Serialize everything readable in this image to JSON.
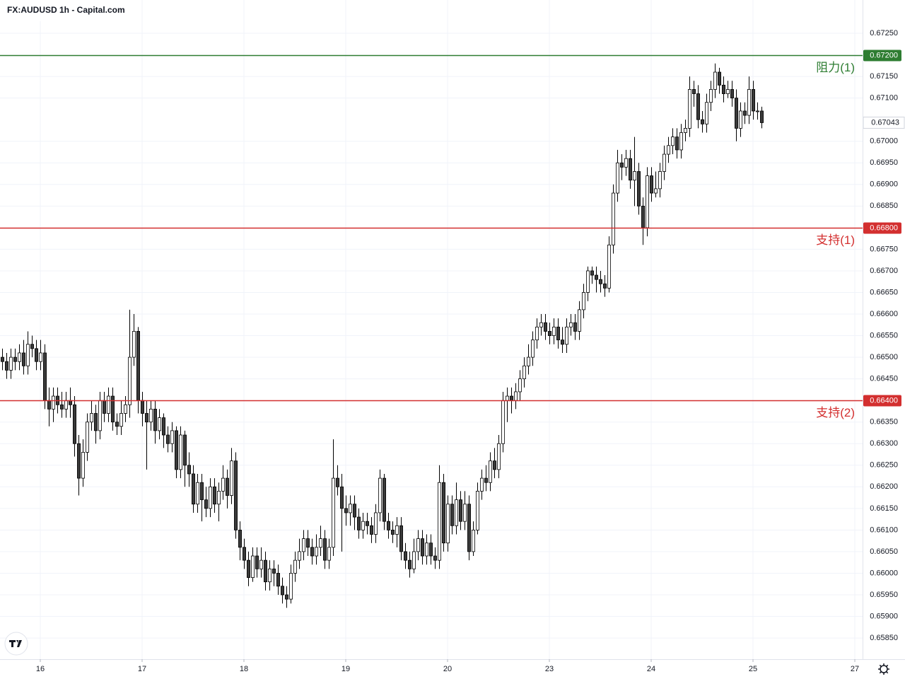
{
  "chart_data": {
    "type": "candlestick",
    "title": "FX:AUDUSD 1h - Capital.com",
    "up_color": "#ffffff",
    "down_color": "#3a3a3a",
    "wick_color": "#000000",
    "grid": true,
    "ylim": [
      0.65801,
      0.67327
    ],
    "xlim": [
      -0.5,
      202.83
    ],
    "yticks": [
      {
        "value": 0.6725,
        "label": "0.67250"
      },
      {
        "value": 0.6715,
        "label": "0.67150"
      },
      {
        "value": 0.671,
        "label": "0.67100"
      },
      {
        "value": 0.67,
        "label": "0.67000"
      },
      {
        "value": 0.6695,
        "label": "0.66950"
      },
      {
        "value": 0.669,
        "label": "0.66900"
      },
      {
        "value": 0.6685,
        "label": "0.66850"
      },
      {
        "value": 0.6675,
        "label": "0.66750"
      },
      {
        "value": 0.667,
        "label": "0.66700"
      },
      {
        "value": 0.6665,
        "label": "0.66650"
      },
      {
        "value": 0.666,
        "label": "0.66600"
      },
      {
        "value": 0.6655,
        "label": "0.66550"
      },
      {
        "value": 0.665,
        "label": "0.66500"
      },
      {
        "value": 0.6645,
        "label": "0.66450"
      },
      {
        "value": 0.6635,
        "label": "0.66350"
      },
      {
        "value": 0.663,
        "label": "0.66300"
      },
      {
        "value": 0.6625,
        "label": "0.66250"
      },
      {
        "value": 0.662,
        "label": "0.66200"
      },
      {
        "value": 0.6615,
        "label": "0.66150"
      },
      {
        "value": 0.661,
        "label": "0.66100"
      },
      {
        "value": 0.6605,
        "label": "0.66050"
      },
      {
        "value": 0.66,
        "label": "0.66000"
      },
      {
        "value": 0.6595,
        "label": "0.65950"
      },
      {
        "value": 0.659,
        "label": "0.65900"
      },
      {
        "value": 0.6585,
        "label": "0.65850"
      }
    ],
    "xticks": [
      {
        "value": 9,
        "label": "16"
      },
      {
        "value": 33,
        "label": "17"
      },
      {
        "value": 57,
        "label": "18"
      },
      {
        "value": 81,
        "label": "19"
      },
      {
        "value": 105,
        "label": "20"
      },
      {
        "value": 129,
        "label": "23"
      },
      {
        "value": 153,
        "label": "24"
      },
      {
        "value": 177,
        "label": "25"
      },
      {
        "value": 201,
        "label": "27"
      }
    ],
    "levels": [
      {
        "value": 0.672,
        "label": "0.67200",
        "name": "阻力(1)",
        "color": "#2e7d32"
      },
      {
        "value": 0.668,
        "label": "0.66800",
        "name": "支持(1)",
        "color": "#d32f2f"
      },
      {
        "value": 0.664,
        "label": "0.66400",
        "name": "支持(2)",
        "color": "#d32f2f"
      }
    ],
    "open": [
      0.665,
      0.6649,
      0.6647,
      0.665,
      0.6649,
      0.6651,
      0.6648,
      0.6653,
      0.6652,
      0.6649,
      0.6651,
      0.664,
      0.6638,
      0.6641,
      0.6639,
      0.6638,
      0.664,
      0.6639,
      0.663,
      0.6622,
      0.6628,
      0.6635,
      0.6637,
      0.6633,
      0.664,
      0.6637,
      0.6641,
      0.6635,
      0.6634,
      0.6637,
      0.6639,
      0.665,
      0.6656,
      0.664,
      0.6637,
      0.6635,
      0.6638,
      0.6633,
      0.6636,
      0.6632,
      0.663,
      0.6633,
      0.6624,
      0.6632,
      0.6625,
      0.6623,
      0.6616,
      0.6621,
      0.6617,
      0.6615,
      0.662,
      0.6616,
      0.6619,
      0.6622,
      0.6618,
      0.6626,
      0.661,
      0.6606,
      0.6603,
      0.6599,
      0.6604,
      0.6601,
      0.6603,
      0.6598,
      0.6601,
      0.66,
      0.6597,
      0.6595,
      0.6594,
      0.66,
      0.6603,
      0.6605,
      0.6608,
      0.6606,
      0.6604,
      0.6606,
      0.6608,
      0.6603,
      0.6606,
      0.6622,
      0.662,
      0.6615,
      0.6614,
      0.6616,
      0.6613,
      0.661,
      0.6612,
      0.6611,
      0.6609,
      0.6614,
      0.6622,
      0.6612,
      0.661,
      0.6609,
      0.6611,
      0.6605,
      0.6603,
      0.6601,
      0.6605,
      0.6608,
      0.6604,
      0.6607,
      0.6604,
      0.6603,
      0.6621,
      0.6607,
      0.6616,
      0.6611,
      0.6617,
      0.6612,
      0.6616,
      0.6605,
      0.661,
      0.6619,
      0.6622,
      0.6621,
      0.6626,
      0.6624,
      0.663,
      0.664,
      0.6641,
      0.664,
      0.6642,
      0.6645,
      0.6648,
      0.665,
      0.6654,
      0.6657,
      0.6658,
      0.6656,
      0.6655,
      0.6657,
      0.6654,
      0.6653,
      0.6657,
      0.6658,
      0.6656,
      0.6661,
      0.6665,
      0.667,
      0.6669,
      0.6668,
      0.6667,
      0.6666,
      0.6676,
      0.6688,
      0.6695,
      0.6694,
      0.6696,
      0.6691,
      0.6693,
      0.6685,
      0.668,
      0.6692,
      0.6688,
      0.6689,
      0.6693,
      0.6697,
      0.6699,
      0.6701,
      0.6698,
      0.6702,
      0.6703,
      0.6712,
      0.6711,
      0.6705,
      0.6704,
      0.6709,
      0.6712,
      0.6716,
      0.6713,
      0.6711,
      0.6712,
      0.671,
      0.6703,
      0.6707,
      0.6706,
      0.6712,
      0.6707,
      0.6707
    ],
    "high": [
      0.6652,
      0.6651,
      0.6652,
      0.6652,
      0.6653,
      0.6654,
      0.6656,
      0.6655,
      0.6654,
      0.6654,
      0.6653,
      0.6643,
      0.6643,
      0.6643,
      0.6642,
      0.6642,
      0.6643,
      0.6641,
      0.6632,
      0.6631,
      0.6637,
      0.664,
      0.6639,
      0.6642,
      0.6642,
      0.6643,
      0.6643,
      0.6637,
      0.664,
      0.6641,
      0.6661,
      0.666,
      0.6657,
      0.6642,
      0.664,
      0.664,
      0.664,
      0.6638,
      0.6637,
      0.6634,
      0.6635,
      0.6634,
      0.6634,
      0.6633,
      0.6628,
      0.6625,
      0.6623,
      0.6623,
      0.662,
      0.6622,
      0.6622,
      0.6621,
      0.6625,
      0.6624,
      0.6629,
      0.6628,
      0.6612,
      0.6608,
      0.6605,
      0.6606,
      0.6606,
      0.6606,
      0.6605,
      0.6603,
      0.6603,
      0.6602,
      0.6599,
      0.6597,
      0.6602,
      0.6605,
      0.6608,
      0.661,
      0.661,
      0.6608,
      0.6609,
      0.6611,
      0.661,
      0.6608,
      0.6631,
      0.6625,
      0.6623,
      0.6618,
      0.6618,
      0.6618,
      0.6615,
      0.6614,
      0.6614,
      0.6613,
      0.6616,
      0.6624,
      0.6623,
      0.6614,
      0.6612,
      0.6613,
      0.6613,
      0.6607,
      0.6605,
      0.6608,
      0.661,
      0.661,
      0.6609,
      0.6609,
      0.6606,
      0.6625,
      0.6623,
      0.6618,
      0.6618,
      0.6621,
      0.6619,
      0.6619,
      0.6618,
      0.6612,
      0.6621,
      0.6624,
      0.6625,
      0.6628,
      0.6629,
      0.6632,
      0.6642,
      0.6643,
      0.6643,
      0.6644,
      0.6647,
      0.665,
      0.6653,
      0.6656,
      0.6659,
      0.666,
      0.666,
      0.6658,
      0.6659,
      0.6659,
      0.6657,
      0.6659,
      0.666,
      0.666,
      0.6663,
      0.6667,
      0.6671,
      0.6671,
      0.6671,
      0.667,
      0.6669,
      0.6678,
      0.669,
      0.6698,
      0.6697,
      0.6698,
      0.6698,
      0.6701,
      0.6695,
      0.6687,
      0.6694,
      0.6694,
      0.6693,
      0.6695,
      0.6699,
      0.6701,
      0.6703,
      0.6703,
      0.6704,
      0.6705,
      0.6715,
      0.6714,
      0.6713,
      0.6707,
      0.6711,
      0.6714,
      0.6718,
      0.6717,
      0.6715,
      0.6714,
      0.6714,
      0.6712,
      0.6709,
      0.6709,
      0.6715,
      0.6714,
      0.6709,
      0.6708
    ],
    "low": [
      0.6647,
      0.6645,
      0.6645,
      0.6647,
      0.6647,
      0.6646,
      0.6646,
      0.665,
      0.6647,
      0.6647,
      0.6638,
      0.6634,
      0.6635,
      0.6637,
      0.6636,
      0.6636,
      0.6636,
      0.6627,
      0.6618,
      0.662,
      0.6626,
      0.6633,
      0.663,
      0.6631,
      0.6635,
      0.6635,
      0.6633,
      0.6632,
      0.6632,
      0.6635,
      0.6636,
      0.6648,
      0.6637,
      0.6634,
      0.6624,
      0.6633,
      0.663,
      0.6631,
      0.6629,
      0.6628,
      0.6628,
      0.6622,
      0.6622,
      0.662,
      0.662,
      0.6614,
      0.6614,
      0.6612,
      0.6613,
      0.6613,
      0.6614,
      0.6612,
      0.6617,
      0.6615,
      0.6616,
      0.6608,
      0.6603,
      0.6601,
      0.6597,
      0.6598,
      0.6599,
      0.6599,
      0.6596,
      0.6596,
      0.6597,
      0.6595,
      0.6593,
      0.6592,
      0.6593,
      0.6598,
      0.6601,
      0.6603,
      0.6604,
      0.6602,
      0.6602,
      0.6604,
      0.6601,
      0.6601,
      0.6604,
      0.6618,
      0.6605,
      0.6611,
      0.6611,
      0.661,
      0.6608,
      0.6608,
      0.6609,
      0.6607,
      0.6607,
      0.6612,
      0.661,
      0.6608,
      0.6607,
      0.6606,
      0.6603,
      0.6601,
      0.6599,
      0.66,
      0.6603,
      0.6602,
      0.6602,
      0.6602,
      0.6601,
      0.6601,
      0.6605,
      0.6605,
      0.6609,
      0.6609,
      0.661,
      0.661,
      0.6603,
      0.6604,
      0.6609,
      0.6617,
      0.6619,
      0.6619,
      0.6622,
      0.6622,
      0.6628,
      0.6635,
      0.6637,
      0.6638,
      0.664,
      0.6643,
      0.6646,
      0.6648,
      0.6652,
      0.6655,
      0.6654,
      0.6653,
      0.6653,
      0.6652,
      0.6651,
      0.6651,
      0.6655,
      0.6654,
      0.6654,
      0.6659,
      0.6663,
      0.6667,
      0.6665,
      0.6665,
      0.6664,
      0.6665,
      0.6674,
      0.6686,
      0.6691,
      0.6692,
      0.6689,
      0.6685,
      0.6683,
      0.6676,
      0.6678,
      0.6686,
      0.6687,
      0.6687,
      0.6691,
      0.6695,
      0.6697,
      0.6696,
      0.6696,
      0.67,
      0.6701,
      0.6708,
      0.6703,
      0.6702,
      0.6702,
      0.6707,
      0.671,
      0.6711,
      0.6709,
      0.671,
      0.6708,
      0.67,
      0.6701,
      0.6704,
      0.6704,
      0.6705,
      0.6705,
      0.6703
    ],
    "close": [
      0.6649,
      0.6647,
      0.665,
      0.6649,
      0.6651,
      0.6648,
      0.6653,
      0.6652,
      0.6649,
      0.6651,
      0.664,
      0.6638,
      0.6641,
      0.6639,
      0.6638,
      0.664,
      0.6639,
      0.663,
      0.6622,
      0.6628,
      0.6635,
      0.6637,
      0.6633,
      0.664,
      0.6637,
      0.6641,
      0.6635,
      0.6634,
      0.6637,
      0.6639,
      0.665,
      0.6656,
      0.664,
      0.6637,
      0.6635,
      0.6638,
      0.6633,
      0.6636,
      0.6632,
      0.663,
      0.6633,
      0.6624,
      0.6632,
      0.6625,
      0.6623,
      0.6616,
      0.6621,
      0.6617,
      0.6615,
      0.662,
      0.6616,
      0.6619,
      0.6622,
      0.6618,
      0.6626,
      0.661,
      0.6606,
      0.6603,
      0.6599,
      0.6604,
      0.6601,
      0.6603,
      0.6598,
      0.6601,
      0.66,
      0.6597,
      0.6595,
      0.6594,
      0.66,
      0.6603,
      0.6605,
      0.6608,
      0.6606,
      0.6604,
      0.6606,
      0.6608,
      0.6603,
      0.6606,
      0.6622,
      0.662,
      0.6615,
      0.6614,
      0.6616,
      0.6613,
      0.661,
      0.6612,
      0.6611,
      0.6609,
      0.6614,
      0.6622,
      0.6612,
      0.661,
      0.6609,
      0.6611,
      0.6605,
      0.6603,
      0.6601,
      0.6605,
      0.6608,
      0.6604,
      0.6607,
      0.6604,
      0.6603,
      0.6621,
      0.6607,
      0.6616,
      0.6611,
      0.6617,
      0.6612,
      0.6616,
      0.6605,
      0.661,
      0.6619,
      0.6622,
      0.6621,
      0.6626,
      0.6624,
      0.663,
      0.664,
      0.6641,
      0.664,
      0.6642,
      0.6645,
      0.6648,
      0.665,
      0.6654,
      0.6657,
      0.6658,
      0.6656,
      0.6655,
      0.6657,
      0.6654,
      0.6653,
      0.6657,
      0.6658,
      0.6656,
      0.6661,
      0.6665,
      0.667,
      0.6669,
      0.6668,
      0.6667,
      0.6666,
      0.6676,
      0.6688,
      0.6695,
      0.6694,
      0.6696,
      0.6691,
      0.6693,
      0.6685,
      0.668,
      0.6692,
      0.6688,
      0.6689,
      0.6693,
      0.6697,
      0.6699,
      0.6701,
      0.6698,
      0.6702,
      0.6703,
      0.6712,
      0.6711,
      0.6705,
      0.6704,
      0.6709,
      0.6712,
      0.6716,
      0.6713,
      0.6711,
      0.6712,
      0.671,
      0.6703,
      0.6707,
      0.6706,
      0.6712,
      0.6707,
      0.6707,
      0.67043
    ]
  }
}
